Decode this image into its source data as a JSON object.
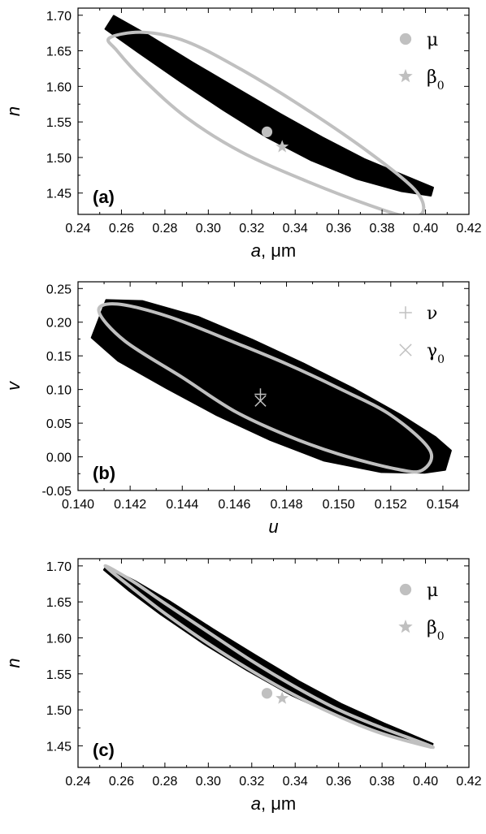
{
  "chart_data": [
    {
      "type": "scatter",
      "panel_label": "(a)",
      "xlabel_var": "a",
      "xlabel_unit": ", μm",
      "ylabel": "n",
      "xlim": [
        0.24,
        0.42
      ],
      "ylim": [
        1.42,
        1.71
      ],
      "xticks": [
        0.24,
        0.26,
        0.28,
        0.3,
        0.32,
        0.34,
        0.36,
        0.38,
        0.4,
        0.42
      ],
      "xtick_labels": [
        "0.24",
        "0.26",
        "0.28",
        "0.30",
        "0.32",
        "0.34",
        "0.36",
        "0.38",
        "0.40",
        "0.42"
      ],
      "yticks": [
        1.45,
        1.5,
        1.55,
        1.6,
        1.65,
        1.7
      ],
      "ytick_labels": [
        "1.45",
        "1.50",
        "1.55",
        "1.60",
        "1.65",
        "1.70"
      ],
      "region": {
        "color": "#000000",
        "center": [
          [
            0.2545,
            1.69
          ],
          [
            0.27,
            1.66
          ],
          [
            0.29,
            1.62
          ],
          [
            0.31,
            1.582
          ],
          [
            0.33,
            1.545
          ],
          [
            0.35,
            1.512
          ],
          [
            0.37,
            1.484
          ],
          [
            0.39,
            1.463
          ],
          [
            0.403,
            1.452
          ]
        ],
        "half_width": [
          0.011,
          0.014,
          0.016,
          0.018,
          0.019,
          0.018,
          0.015,
          0.011,
          0.006
        ]
      },
      "ellipse": {
        "color": "#c0c0c0",
        "center": [
          0.327,
          1.543
        ],
        "points": [
          [
            0.2545,
            1.668
          ],
          [
            0.27,
            1.676
          ],
          [
            0.29,
            1.663
          ],
          [
            0.315,
            1.624
          ],
          [
            0.345,
            1.568
          ],
          [
            0.375,
            1.505
          ],
          [
            0.395,
            1.455
          ],
          [
            0.399,
            1.425
          ],
          [
            0.392,
            1.417
          ],
          [
            0.375,
            1.432
          ],
          [
            0.345,
            1.467
          ],
          [
            0.315,
            1.508
          ],
          [
            0.29,
            1.556
          ],
          [
            0.27,
            1.61
          ],
          [
            0.258,
            1.65
          ]
        ]
      },
      "markers": [
        {
          "symbol": "circle",
          "label": "μ",
          "x": 0.327,
          "y": 1.536
        },
        {
          "symbol": "star",
          "label": "β",
          "label_sub": "0",
          "x": 0.334,
          "y": 1.515
        }
      ]
    },
    {
      "type": "scatter",
      "panel_label": "(b)",
      "xlabel_var": "u",
      "xlabel_unit": "",
      "ylabel": "v",
      "xlim": [
        0.14,
        0.155
      ],
      "ylim": [
        -0.05,
        0.26
      ],
      "xticks": [
        0.14,
        0.142,
        0.144,
        0.146,
        0.148,
        0.15,
        0.152,
        0.154
      ],
      "xtick_labels": [
        "0.140",
        "0.142",
        "0.144",
        "0.146",
        "0.148",
        "0.150",
        "0.152",
        "0.154"
      ],
      "yticks": [
        -0.05,
        0.0,
        0.05,
        0.1,
        0.15,
        0.2,
        0.25
      ],
      "ytick_labels": [
        "-0.05",
        "0.00",
        "0.05",
        "0.10",
        "0.15",
        "0.20",
        "0.25"
      ],
      "region": {
        "color": "#000000",
        "center": [
          [
            0.1408,
            0.205
          ],
          [
            0.142,
            0.187
          ],
          [
            0.144,
            0.155
          ],
          [
            0.146,
            0.118
          ],
          [
            0.148,
            0.082
          ],
          [
            0.15,
            0.048
          ],
          [
            0.152,
            0.02
          ],
          [
            0.1535,
            0.003
          ],
          [
            0.1542,
            -0.005
          ]
        ],
        "half_width": [
          0.03,
          0.048,
          0.058,
          0.062,
          0.062,
          0.058,
          0.045,
          0.028,
          0.015
        ]
      },
      "ellipse": {
        "color": "#c0c0c0",
        "center": [
          0.1472,
          0.1
        ],
        "points": [
          [
            0.1408,
            0.216
          ],
          [
            0.1415,
            0.227
          ],
          [
            0.1435,
            0.208
          ],
          [
            0.146,
            0.17
          ],
          [
            0.148,
            0.138
          ],
          [
            0.15,
            0.102
          ],
          [
            0.152,
            0.062
          ],
          [
            0.1535,
            0.01
          ],
          [
            0.1532,
            -0.02
          ],
          [
            0.1522,
            -0.018
          ],
          [
            0.15,
            0.004
          ],
          [
            0.148,
            0.032
          ],
          [
            0.146,
            0.068
          ],
          [
            0.144,
            0.118
          ],
          [
            0.1418,
            0.172
          ]
        ]
      },
      "markers": [
        {
          "symbol": "plus",
          "label": "ν",
          "x": 0.147,
          "y": 0.093
        },
        {
          "symbol": "cross",
          "label": "γ",
          "label_sub": "0",
          "x": 0.147,
          "y": 0.083
        }
      ]
    },
    {
      "type": "scatter",
      "panel_label": "(c)",
      "xlabel_var": "a",
      "xlabel_unit": ", μm",
      "ylabel": "n",
      "xlim": [
        0.24,
        0.42
      ],
      "ylim": [
        1.42,
        1.71
      ],
      "xticks": [
        0.24,
        0.26,
        0.28,
        0.3,
        0.32,
        0.34,
        0.36,
        0.38,
        0.4,
        0.42
      ],
      "xtick_labels": [
        "0.24",
        "0.26",
        "0.28",
        "0.30",
        "0.32",
        "0.34",
        "0.36",
        "0.38",
        "0.40",
        "0.42"
      ],
      "yticks": [
        1.45,
        1.5,
        1.55,
        1.6,
        1.65,
        1.7
      ],
      "ytick_labels": [
        "1.45",
        "1.50",
        "1.55",
        "1.60",
        "1.65",
        "1.70"
      ],
      "region": {
        "color": "#000000",
        "center": [
          [
            0.2525,
            1.697
          ],
          [
            0.265,
            1.672
          ],
          [
            0.28,
            1.642
          ],
          [
            0.3,
            1.602
          ],
          [
            0.32,
            1.565
          ],
          [
            0.34,
            1.53
          ],
          [
            0.36,
            1.5
          ],
          [
            0.38,
            1.475
          ],
          [
            0.403,
            1.45
          ]
        ],
        "half_width": [
          0.003,
          0.008,
          0.011,
          0.012,
          0.012,
          0.011,
          0.009,
          0.007,
          0.003
        ]
      },
      "ellipse": {
        "color": "#c0c0c0",
        "center": [
          0.328,
          1.525
        ],
        "points": [
          [
            0.2525,
            1.7
          ],
          [
            0.265,
            1.679
          ],
          [
            0.28,
            1.648
          ],
          [
            0.3,
            1.608
          ],
          [
            0.32,
            1.568
          ],
          [
            0.34,
            1.532
          ],
          [
            0.36,
            1.5
          ],
          [
            0.38,
            1.475
          ],
          [
            0.4035,
            1.448
          ],
          [
            0.38,
            1.467
          ],
          [
            0.36,
            1.491
          ],
          [
            0.34,
            1.52
          ],
          [
            0.32,
            1.554
          ],
          [
            0.3,
            1.592
          ],
          [
            0.28,
            1.634
          ],
          [
            0.265,
            1.669
          ]
        ]
      },
      "markers": [
        {
          "symbol": "circle",
          "label": "μ",
          "x": 0.327,
          "y": 1.523
        },
        {
          "symbol": "star",
          "label": "β",
          "label_sub": "0",
          "x": 0.334,
          "y": 1.516
        }
      ]
    }
  ]
}
